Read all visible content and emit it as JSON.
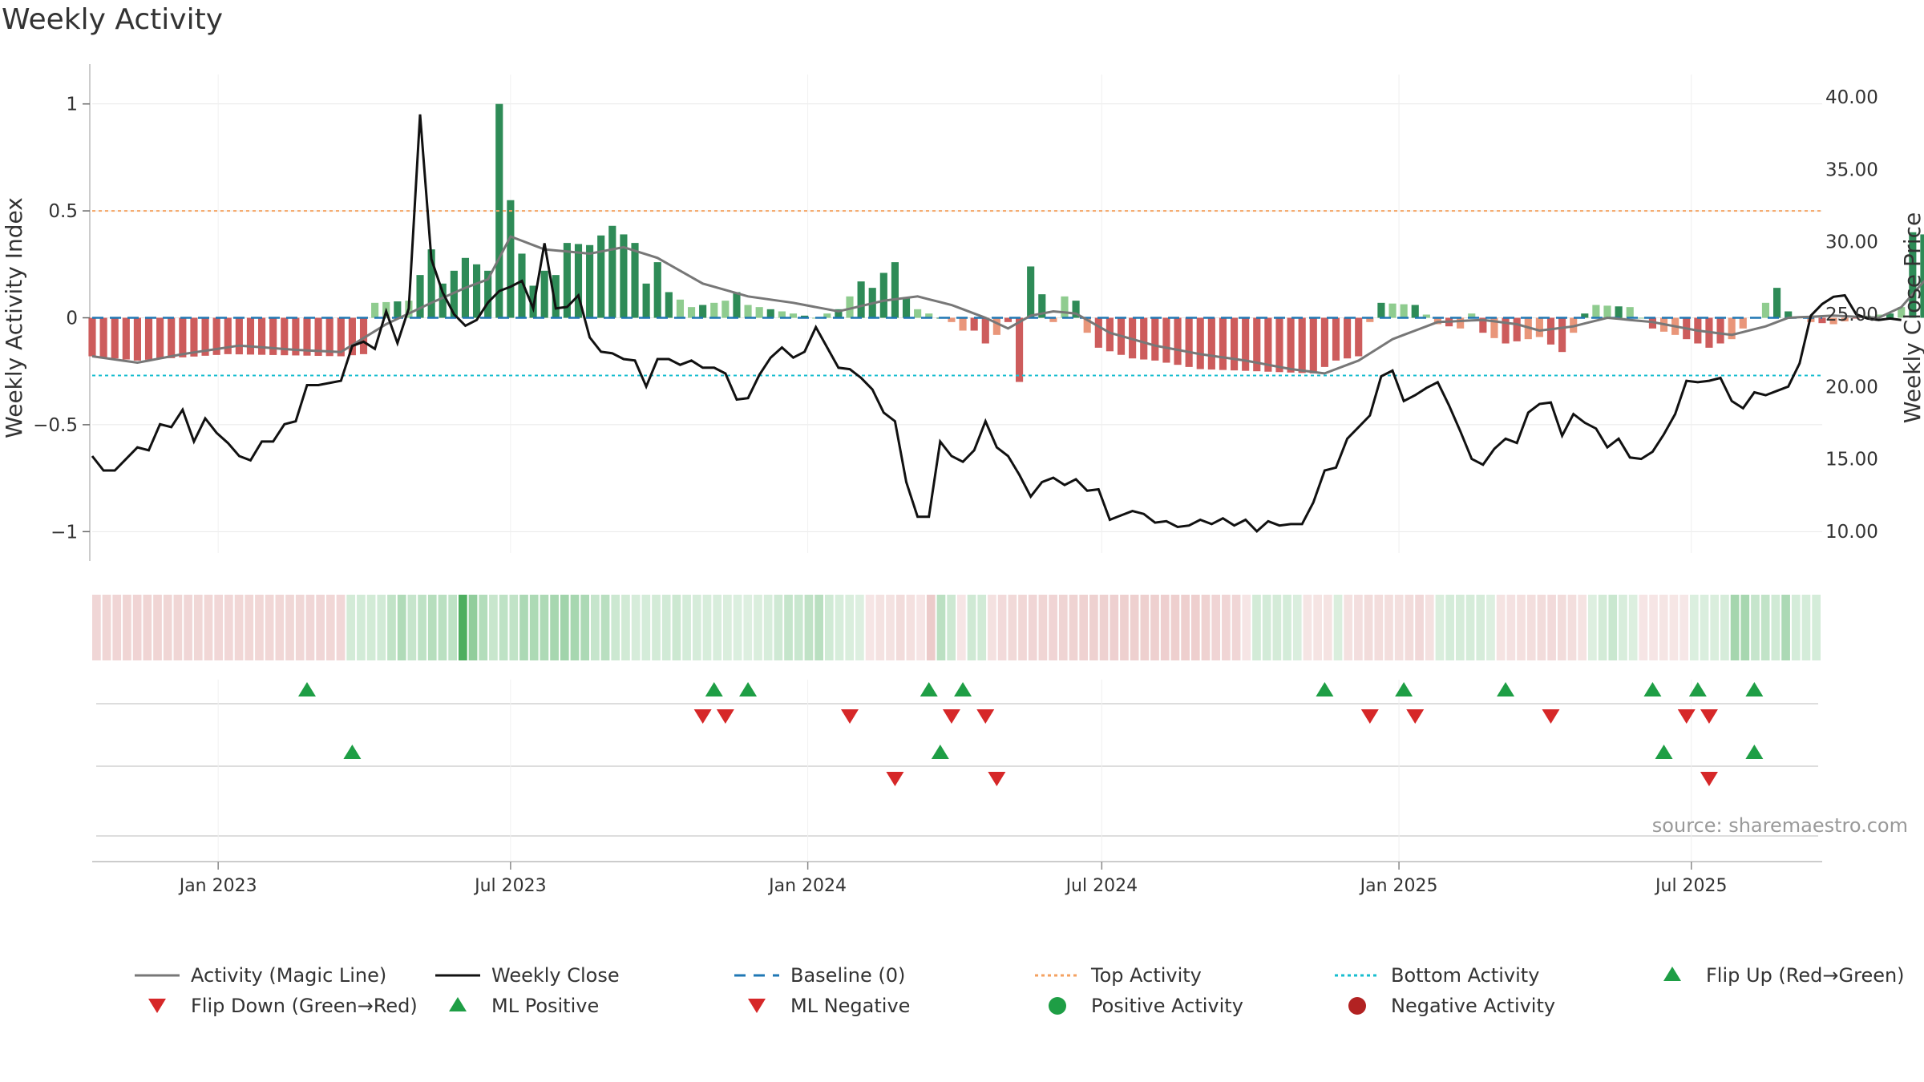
{
  "chart_data": {
    "type": "bar",
    "title": "Weekly Activity",
    "ylabel_left": "Weekly Activity Index",
    "ylabel_right": "Weekly Close Price",
    "source": "source: sharemaestro.com",
    "ylim_left": [
      -1.1,
      1.1
    ],
    "ylim_right": [
      8.5,
      41
    ],
    "x_start": "2022-10-15",
    "x_end": "2025-09-20",
    "y_ticks_left": [
      {
        "v": 1,
        "label": "1"
      },
      {
        "v": 0.5,
        "label": "0.5"
      },
      {
        "v": 0,
        "label": "0"
      },
      {
        "v": -0.5,
        "label": "−0.5"
      },
      {
        "v": -1,
        "label": "−1"
      }
    ],
    "y_ticks_right": [
      {
        "v": 40,
        "label": "40.00"
      },
      {
        "v": 35,
        "label": "35.00"
      },
      {
        "v": 30,
        "label": "30.00"
      },
      {
        "v": 25,
        "label": "25.00"
      },
      {
        "v": 20,
        "label": "20.00"
      },
      {
        "v": 15,
        "label": "15.00"
      },
      {
        "v": 10,
        "label": "10.00"
      }
    ],
    "x_ticks": [
      {
        "date": "2023-01-01",
        "label": "Jan 2023"
      },
      {
        "date": "2023-07-01",
        "label": "Jul 2023"
      },
      {
        "date": "2024-01-01",
        "label": "Jan 2024"
      },
      {
        "date": "2024-07-01",
        "label": "Jul 2024"
      },
      {
        "date": "2025-01-01",
        "label": "Jan 2025"
      },
      {
        "date": "2025-07-01",
        "label": "Jul 2025"
      }
    ],
    "top_activity": 0.5,
    "bottom_activity": -0.27,
    "activity_keypoints": [
      [
        0,
        -0.18
      ],
      [
        4,
        -0.2
      ],
      [
        12,
        -0.17
      ],
      [
        22,
        -0.18
      ],
      [
        24,
        -0.17
      ],
      [
        25,
        0.07
      ],
      [
        28,
        0.08
      ],
      [
        30,
        0.32
      ],
      [
        31,
        0.16
      ],
      [
        33,
        0.28
      ],
      [
        35,
        0.22
      ],
      [
        36,
        1.0
      ],
      [
        37,
        0.55
      ],
      [
        38,
        0.3
      ],
      [
        39,
        0.15
      ],
      [
        40,
        0.22
      ],
      [
        41,
        0.2
      ],
      [
        42,
        0.35
      ],
      [
        44,
        0.34
      ],
      [
        46,
        0.43
      ],
      [
        48,
        0.35
      ],
      [
        49,
        0.16
      ],
      [
        50,
        0.26
      ],
      [
        51,
        0.12
      ],
      [
        53,
        0.05
      ],
      [
        56,
        0.08
      ],
      [
        57,
        0.12
      ],
      [
        58,
        0.06
      ],
      [
        62,
        0.02
      ],
      [
        64,
        0.0
      ],
      [
        66,
        0.04
      ],
      [
        67,
        0.1
      ],
      [
        68,
        0.17
      ],
      [
        69,
        0.14
      ],
      [
        70,
        0.21
      ],
      [
        71,
        0.26
      ],
      [
        72,
        0.09
      ],
      [
        73,
        0.04
      ],
      [
        76,
        -0.02
      ],
      [
        77,
        -0.06
      ],
      [
        78,
        -0.06
      ],
      [
        79,
        -0.12
      ],
      [
        80,
        -0.08
      ],
      [
        81,
        -0.02
      ],
      [
        82,
        -0.3
      ],
      [
        83,
        0.24
      ],
      [
        84,
        0.11
      ],
      [
        85,
        -0.02
      ],
      [
        86,
        0.1
      ],
      [
        87,
        0.08
      ],
      [
        88,
        -0.07
      ],
      [
        89,
        -0.14
      ],
      [
        92,
        -0.19
      ],
      [
        94,
        -0.2
      ],
      [
        96,
        -0.22
      ],
      [
        98,
        -0.24
      ],
      [
        108,
        -0.26
      ],
      [
        110,
        -0.2
      ],
      [
        112,
        -0.18
      ],
      [
        113,
        -0.02
      ],
      [
        114,
        0.07
      ],
      [
        117,
        0.06
      ],
      [
        119,
        -0.03
      ],
      [
        121,
        -0.05
      ],
      [
        122,
        0.02
      ],
      [
        123,
        -0.07
      ],
      [
        125,
        -0.12
      ],
      [
        128,
        -0.09
      ],
      [
        130,
        -0.16
      ],
      [
        132,
        0.02
      ],
      [
        133,
        0.06
      ],
      [
        136,
        0.05
      ],
      [
        138,
        -0.05
      ],
      [
        140,
        -0.08
      ],
      [
        143,
        -0.14
      ],
      [
        145,
        -0.1
      ],
      [
        147,
        0.0
      ],
      [
        148,
        0.07
      ],
      [
        149,
        0.14
      ],
      [
        150,
        0.03
      ],
      [
        152,
        -0.02
      ],
      [
        154,
        -0.03
      ],
      [
        157,
        0.01
      ],
      [
        159,
        0.02
      ],
      [
        160,
        0.05
      ],
      [
        161,
        0.4
      ],
      [
        162,
        0.39
      ],
      [
        163,
        0.16
      ],
      [
        164,
        0.2
      ],
      [
        165,
        0.09
      ],
      [
        166,
        0.35
      ],
      [
        167,
        0.06
      ],
      [
        169,
        0.06
      ]
    ],
    "magic_keypoints": [
      [
        0,
        -0.18
      ],
      [
        4,
        -0.21
      ],
      [
        8,
        -0.17
      ],
      [
        13,
        -0.13
      ],
      [
        18,
        -0.15
      ],
      [
        22,
        -0.16
      ],
      [
        26,
        -0.03
      ],
      [
        30,
        0.07
      ],
      [
        33,
        0.14
      ],
      [
        35,
        0.18
      ],
      [
        37,
        0.38
      ],
      [
        40,
        0.32
      ],
      [
        44,
        0.3
      ],
      [
        47,
        0.33
      ],
      [
        50,
        0.28
      ],
      [
        54,
        0.16
      ],
      [
        58,
        0.1
      ],
      [
        62,
        0.07
      ],
      [
        66,
        0.03
      ],
      [
        70,
        0.08
      ],
      [
        73,
        0.1
      ],
      [
        76,
        0.06
      ],
      [
        79,
        0.0
      ],
      [
        81,
        -0.05
      ],
      [
        83,
        0.01
      ],
      [
        85,
        0.03
      ],
      [
        87,
        0.02
      ],
      [
        90,
        -0.07
      ],
      [
        94,
        -0.13
      ],
      [
        98,
        -0.17
      ],
      [
        102,
        -0.2
      ],
      [
        106,
        -0.24
      ],
      [
        109,
        -0.26
      ],
      [
        112,
        -0.2
      ],
      [
        115,
        -0.1
      ],
      [
        119,
        -0.02
      ],
      [
        123,
        -0.01
      ],
      [
        126,
        -0.03
      ],
      [
        128,
        -0.06
      ],
      [
        131,
        -0.04
      ],
      [
        134,
        0.0
      ],
      [
        138,
        -0.02
      ],
      [
        142,
        -0.06
      ],
      [
        145,
        -0.08
      ],
      [
        148,
        -0.04
      ],
      [
        150,
        0.0
      ],
      [
        154,
        0.01
      ],
      [
        158,
        0.0
      ],
      [
        160,
        0.05
      ],
      [
        162,
        0.17
      ],
      [
        165,
        0.18
      ],
      [
        167,
        0.2
      ],
      [
        169,
        0.18
      ]
    ],
    "close_keypoints": [
      [
        0,
        15.2
      ],
      [
        1,
        14.2
      ],
      [
        2,
        14.2
      ],
      [
        4,
        15.8
      ],
      [
        5,
        15.6
      ],
      [
        6,
        17.4
      ],
      [
        7,
        17.2
      ],
      [
        8,
        18.4
      ],
      [
        9,
        16.2
      ],
      [
        10,
        17.8
      ],
      [
        11,
        16.8
      ],
      [
        12,
        16.1
      ],
      [
        13,
        15.2
      ],
      [
        14,
        14.9
      ],
      [
        15,
        16.2
      ],
      [
        16,
        16.2
      ],
      [
        17,
        17.4
      ],
      [
        18,
        17.6
      ],
      [
        19,
        20.1
      ],
      [
        20,
        20.1
      ],
      [
        22,
        20.4
      ],
      [
        23,
        22.8
      ],
      [
        24,
        23.1
      ],
      [
        25,
        22.6
      ],
      [
        26,
        25.2
      ],
      [
        27,
        23.0
      ],
      [
        28,
        25.4
      ],
      [
        29,
        38.8
      ],
      [
        30,
        28.8
      ],
      [
        31,
        26.5
      ],
      [
        32,
        25.0
      ],
      [
        33,
        24.2
      ],
      [
        34,
        24.6
      ],
      [
        35,
        25.8
      ],
      [
        36,
        26.6
      ],
      [
        37,
        26.9
      ],
      [
        38,
        27.3
      ],
      [
        39,
        25.4
      ],
      [
        40,
        29.9
      ],
      [
        41,
        25.4
      ],
      [
        42,
        25.5
      ],
      [
        43,
        26.3
      ],
      [
        44,
        23.4
      ],
      [
        45,
        22.4
      ],
      [
        46,
        22.3
      ],
      [
        47,
        21.9
      ],
      [
        48,
        21.8
      ],
      [
        49,
        20.0
      ],
      [
        50,
        21.9
      ],
      [
        51,
        21.9
      ],
      [
        52,
        21.5
      ],
      [
        53,
        21.8
      ],
      [
        54,
        21.3
      ],
      [
        55,
        21.3
      ],
      [
        56,
        20.9
      ],
      [
        57,
        19.1
      ],
      [
        58,
        19.2
      ],
      [
        59,
        20.8
      ],
      [
        60,
        22.0
      ],
      [
        61,
        22.7
      ],
      [
        62,
        22.0
      ],
      [
        63,
        22.4
      ],
      [
        64,
        24.1
      ],
      [
        65,
        22.7
      ],
      [
        66,
        21.3
      ],
      [
        67,
        21.2
      ],
      [
        68,
        20.6
      ],
      [
        69,
        19.8
      ],
      [
        70,
        18.2
      ],
      [
        71,
        17.6
      ],
      [
        72,
        13.4
      ],
      [
        73,
        11.0
      ],
      [
        74,
        11.0
      ],
      [
        75,
        16.2
      ],
      [
        76,
        15.2
      ],
      [
        77,
        14.8
      ],
      [
        78,
        15.6
      ],
      [
        79,
        17.6
      ],
      [
        80,
        15.8
      ],
      [
        81,
        15.2
      ],
      [
        82,
        13.9
      ],
      [
        83,
        12.4
      ],
      [
        84,
        13.4
      ],
      [
        85,
        13.7
      ],
      [
        86,
        13.2
      ],
      [
        87,
        13.6
      ],
      [
        88,
        12.8
      ],
      [
        89,
        12.9
      ],
      [
        90,
        10.8
      ],
      [
        91,
        11.1
      ],
      [
        92,
        11.4
      ],
      [
        93,
        11.2
      ],
      [
        94,
        10.6
      ],
      [
        95,
        10.7
      ],
      [
        96,
        10.3
      ],
      [
        97,
        10.4
      ],
      [
        98,
        10.8
      ],
      [
        99,
        10.5
      ],
      [
        100,
        10.9
      ],
      [
        101,
        10.4
      ],
      [
        102,
        10.8
      ],
      [
        103,
        10.0
      ],
      [
        104,
        10.7
      ],
      [
        105,
        10.4
      ],
      [
        106,
        10.5
      ],
      [
        107,
        10.5
      ],
      [
        108,
        12.0
      ],
      [
        109,
        14.2
      ],
      [
        110,
        14.4
      ],
      [
        111,
        16.4
      ],
      [
        112,
        17.2
      ],
      [
        113,
        18.0
      ],
      [
        114,
        20.7
      ],
      [
        115,
        21.1
      ],
      [
        116,
        19.0
      ],
      [
        117,
        19.4
      ],
      [
        118,
        19.9
      ],
      [
        119,
        20.3
      ],
      [
        120,
        18.7
      ],
      [
        121,
        16.9
      ],
      [
        122,
        15.0
      ],
      [
        123,
        14.6
      ],
      [
        124,
        15.7
      ],
      [
        125,
        16.4
      ],
      [
        126,
        16.1
      ],
      [
        127,
        18.2
      ],
      [
        128,
        18.8
      ],
      [
        129,
        18.9
      ],
      [
        130,
        16.6
      ],
      [
        131,
        18.1
      ],
      [
        132,
        17.5
      ],
      [
        133,
        17.1
      ],
      [
        134,
        15.8
      ],
      [
        135,
        16.4
      ],
      [
        136,
        15.1
      ],
      [
        137,
        15.0
      ],
      [
        138,
        15.5
      ],
      [
        139,
        16.7
      ],
      [
        140,
        18.1
      ],
      [
        141,
        20.4
      ],
      [
        142,
        20.3
      ],
      [
        143,
        20.4
      ],
      [
        144,
        20.6
      ],
      [
        145,
        19.0
      ],
      [
        146,
        18.5
      ],
      [
        147,
        19.6
      ],
      [
        148,
        19.4
      ],
      [
        149,
        19.7
      ],
      [
        150,
        20.0
      ],
      [
        151,
        21.6
      ],
      [
        152,
        24.9
      ],
      [
        153,
        25.7
      ],
      [
        154,
        26.2
      ],
      [
        155,
        26.3
      ],
      [
        156,
        25.0
      ],
      [
        157,
        24.7
      ],
      [
        158,
        24.6
      ],
      [
        159,
        24.7
      ],
      [
        160,
        24.6
      ]
    ],
    "flip_up_weeks": [
      19,
      55,
      58,
      74,
      77,
      109,
      116,
      125,
      138,
      142,
      147
    ],
    "flip_down_weeks": [
      54,
      56,
      67,
      76,
      79,
      113,
      117,
      129,
      141,
      143
    ],
    "ml_positive_weeks": [
      23,
      75,
      139,
      147
    ],
    "ml_negative_weeks": [
      71,
      80,
      143
    ],
    "legend_placement": "bottom",
    "legend": [
      {
        "label": "Activity (Magic Line)",
        "kind": "line",
        "color": "#777777"
      },
      {
        "label": "Weekly Close",
        "kind": "line",
        "color": "#111111"
      },
      {
        "label": "Baseline (0)",
        "kind": "dash",
        "color": "#1f77b4"
      },
      {
        "label": "Top Activity",
        "kind": "dot",
        "color": "#f4a261"
      },
      {
        "label": "Bottom Activity",
        "kind": "dot",
        "color": "#17becf"
      },
      {
        "label": "Flip Up (Red→Green)",
        "kind": "tri-up",
        "color": "#1e9e45"
      },
      {
        "label": "Flip Down (Green→Red)",
        "kind": "tri-down",
        "color": "#d62728"
      },
      {
        "label": "ML Positive",
        "kind": "tri-up",
        "color": "#1e9e45"
      },
      {
        "label": "ML Negative",
        "kind": "tri-down",
        "color": "#d62728"
      },
      {
        "label": "Positive Activity",
        "kind": "circle",
        "color": "#1e9e45"
      },
      {
        "label": "Negative Activity",
        "kind": "circle",
        "color": "#b22222"
      }
    ],
    "colors": {
      "pos_strong": "#2e8b57",
      "pos_light": "#8fcc8f",
      "neg_strong": "#cd5c5c",
      "neg_light": "#e9967a",
      "magic": "#777777",
      "close": "#111111",
      "baseline": "#1f77b4",
      "top": "#f4a261",
      "bottom": "#17becf",
      "marker_up": "#1e9e45",
      "marker_down": "#d62728",
      "grid": "#e8e8e8",
      "axis": "#cccccc"
    }
  }
}
